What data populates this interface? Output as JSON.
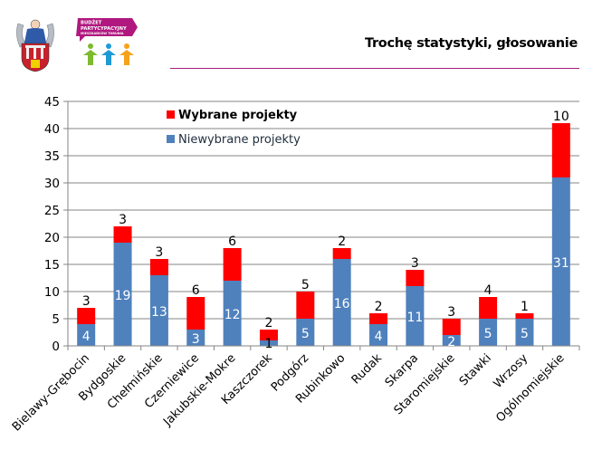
{
  "header": {
    "title": "Trochę statystyki, głosowanie",
    "budget_logo_text": [
      "BUDŻET",
      "PARTYCYPACYJNY",
      "MIESZKAŃCÓW TORUNIA"
    ],
    "rule_color": "#a0207e"
  },
  "chart_data": {
    "type": "bar",
    "stacked": true,
    "title": "",
    "xlabel": "",
    "ylabel": "",
    "ylim": [
      0,
      45
    ],
    "yticks": [
      0,
      5,
      10,
      15,
      20,
      25,
      30,
      35,
      40,
      45
    ],
    "grid": true,
    "legend_position": "top-left",
    "categories": [
      "Bielawy-Grębocin",
      "Bydgoskie",
      "Chełmińskie",
      "Czerniewice",
      "Jakubskie-Mokre",
      "Kaszczorek",
      "Podgórz",
      "Rubinkowo",
      "Rudak",
      "Skarpa",
      "Staromiejskie",
      "Stawki",
      "Wrzosy",
      "Ogólnomiejskie"
    ],
    "series": [
      {
        "name": "Niewybrane projekty",
        "color": "#4f81bd",
        "values": [
          4,
          19,
          13,
          3,
          12,
          1,
          5,
          16,
          4,
          11,
          2,
          5,
          5,
          31
        ]
      },
      {
        "name": "Wybrane projekty",
        "color": "#ff0000",
        "values": [
          3,
          3,
          3,
          6,
          6,
          2,
          5,
          2,
          2,
          3,
          3,
          4,
          1,
          10
        ]
      }
    ],
    "legend_order": [
      "Wybrane projekty",
      "Niewybrane projekty"
    ]
  }
}
